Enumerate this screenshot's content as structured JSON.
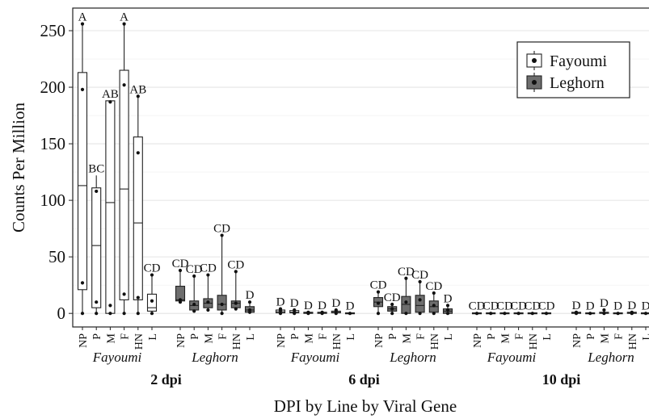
{
  "chart_data": {
    "type": "boxplot",
    "ylabel": "Counts Per Million",
    "xlabel": "DPI by Line by Viral Gene",
    "ylim": [
      -12,
      270
    ],
    "yticks": [
      0,
      50,
      100,
      150,
      200,
      250
    ],
    "grid": true,
    "legend": {
      "position": "top-right",
      "entries": [
        {
          "name": "Fayoumi",
          "color": "#ffffff"
        },
        {
          "name": "Leghorn",
          "color": "#6e6e6e"
        }
      ]
    },
    "genes": [
      "NP",
      "P",
      "M",
      "F",
      "HN",
      "L"
    ],
    "panels": [
      {
        "dpi": "2 dpi",
        "groups": [
          {
            "line": "Fayoumi",
            "boxes": [
              {
                "gene": "NP",
                "min": 0,
                "q1": 21,
                "median": 113,
                "q3": 213,
                "max": 256,
                "points": [
                  0,
                  27,
                  198,
                  256
                ],
                "letter": "A"
              },
              {
                "gene": "P",
                "min": 0,
                "q1": 5,
                "median": 60,
                "q3": 111,
                "max": 122,
                "points": [
                  0,
                  10,
                  108
                ],
                "letter": "BC"
              },
              {
                "gene": "M",
                "min": 0,
                "q1": 0,
                "median": 98,
                "q3": 188,
                "max": 188,
                "points": [
                  0,
                  7,
                  187
                ],
                "letter": "AB"
              },
              {
                "gene": "F",
                "min": 0,
                "q1": 12,
                "median": 110,
                "q3": 215,
                "max": 256,
                "points": [
                  0,
                  17,
                  202,
                  256
                ],
                "letter": "A"
              },
              {
                "gene": "HN",
                "min": 0,
                "q1": 12,
                "median": 80,
                "q3": 156,
                "max": 192,
                "points": [
                  0,
                  14,
                  142,
                  192
                ],
                "letter": "AB"
              },
              {
                "gene": "L",
                "min": 0,
                "q1": 2,
                "median": 5,
                "q3": 17,
                "max": 34,
                "points": [
                  0,
                  11,
                  34
                ],
                "letter": "CD"
              }
            ]
          },
          {
            "line": "Leghorn",
            "boxes": [
              {
                "gene": "NP",
                "min": 10,
                "q1": 11,
                "median": 12,
                "q3": 24,
                "max": 38,
                "points": [
                  10,
                  12,
                  38
                ],
                "letter": "CD"
              },
              {
                "gene": "P",
                "min": 2,
                "q1": 3,
                "median": 7,
                "q3": 11,
                "max": 33,
                "points": [
                  2,
                  8,
                  33
                ],
                "letter": "CD"
              },
              {
                "gene": "M",
                "min": 3,
                "q1": 5,
                "median": 9,
                "q3": 13,
                "max": 34,
                "points": [
                  3,
                  10,
                  34
                ],
                "letter": "CD"
              },
              {
                "gene": "F",
                "min": 0,
                "q1": 3,
                "median": 8,
                "q3": 16,
                "max": 69,
                "points": [
                  0,
                  8,
                  69
                ],
                "letter": "CD"
              },
              {
                "gene": "HN",
                "min": 4,
                "q1": 5,
                "median": 9,
                "q3": 11,
                "max": 37,
                "points": [
                  4,
                  9,
                  37
                ],
                "letter": "CD"
              },
              {
                "gene": "L",
                "min": 1,
                "q1": 1,
                "median": 3,
                "q3": 6,
                "max": 10,
                "points": [
                  1,
                  3,
                  10
                ],
                "letter": "D"
              }
            ]
          }
        ]
      },
      {
        "dpi": "6 dpi",
        "groups": [
          {
            "line": "Fayoumi",
            "boxes": [
              {
                "gene": "NP",
                "min": 0,
                "q1": 0.5,
                "median": 1.5,
                "q3": 3,
                "max": 4,
                "points": [
                  0,
                  2,
                  4
                ],
                "letter": "D"
              },
              {
                "gene": "P",
                "min": 0,
                "q1": 0.5,
                "median": 1,
                "q3": 2.5,
                "max": 3,
                "points": [
                  0,
                  1,
                  3
                ],
                "letter": "D"
              },
              {
                "gene": "M",
                "min": 0,
                "q1": 0,
                "median": 0.5,
                "q3": 1,
                "max": 1,
                "points": [
                  0,
                  1
                ],
                "letter": "D"
              },
              {
                "gene": "F",
                "min": 0,
                "q1": 0,
                "median": 0.5,
                "q3": 1,
                "max": 1,
                "points": [
                  0,
                  1
                ],
                "letter": "D"
              },
              {
                "gene": "HN",
                "min": 0,
                "q1": 0.5,
                "median": 1,
                "q3": 2,
                "max": 3,
                "points": [
                  0,
                  2,
                  3
                ],
                "letter": "D"
              },
              {
                "gene": "L",
                "min": 0,
                "q1": 0,
                "median": 0,
                "q3": 0.5,
                "max": 0.5,
                "points": [
                  0
                ],
                "letter": "D"
              }
            ]
          },
          {
            "line": "Leghorn",
            "boxes": [
              {
                "gene": "NP",
                "min": 0,
                "q1": 6,
                "median": 10,
                "q3": 14,
                "max": 19,
                "points": [
                  0,
                  9,
                  19
                ],
                "letter": "CD"
              },
              {
                "gene": "P",
                "min": 0,
                "q1": 2,
                "median": 4,
                "q3": 6,
                "max": 8,
                "points": [
                  0,
                  4,
                  8
                ],
                "letter": "CD"
              },
              {
                "gene": "M",
                "min": 0,
                "q1": 0,
                "median": 8,
                "q3": 15,
                "max": 31,
                "points": [
                  0,
                  10,
                  31
                ],
                "letter": "CD"
              },
              {
                "gene": "F",
                "min": 0,
                "q1": 1,
                "median": 7,
                "q3": 16,
                "max": 28,
                "points": [
                  0,
                  12,
                  28
                ],
                "letter": "CD"
              },
              {
                "gene": "HN",
                "min": 0,
                "q1": 1,
                "median": 6,
                "q3": 11,
                "max": 18,
                "points": [
                  0,
                  7,
                  18
                ],
                "letter": "CD"
              },
              {
                "gene": "L",
                "min": 0,
                "q1": 0,
                "median": 2,
                "q3": 4,
                "max": 7,
                "points": [
                  0,
                  3,
                  7
                ],
                "letter": "D"
              }
            ]
          }
        ]
      },
      {
        "dpi": "10 dpi",
        "groups": [
          {
            "line": "Fayoumi",
            "boxes": [
              {
                "gene": "NP",
                "min": 0,
                "q1": 0,
                "median": 0,
                "q3": 0.5,
                "max": 0.5,
                "points": [
                  0
                ],
                "letter": "CD"
              },
              {
                "gene": "P",
                "min": 0,
                "q1": 0,
                "median": 0,
                "q3": 0.5,
                "max": 0.5,
                "points": [
                  0
                ],
                "letter": "CD"
              },
              {
                "gene": "M",
                "min": 0,
                "q1": 0,
                "median": 0,
                "q3": 0.5,
                "max": 0.5,
                "points": [
                  0
                ],
                "letter": "CD"
              },
              {
                "gene": "F",
                "min": 0,
                "q1": 0,
                "median": 0,
                "q3": 0.5,
                "max": 0.5,
                "points": [
                  0
                ],
                "letter": "CD"
              },
              {
                "gene": "HN",
                "min": 0,
                "q1": 0,
                "median": 0,
                "q3": 0.5,
                "max": 0.5,
                "points": [
                  0
                ],
                "letter": "CD"
              },
              {
                "gene": "L",
                "min": 0,
                "q1": 0,
                "median": 0,
                "q3": 0.5,
                "max": 0.5,
                "points": [
                  0
                ],
                "letter": "CD"
              }
            ]
          },
          {
            "line": "Leghorn",
            "boxes": [
              {
                "gene": "NP",
                "min": 0,
                "q1": 0,
                "median": 0.5,
                "q3": 1,
                "max": 1,
                "points": [
                  0,
                  1
                ],
                "letter": "D"
              },
              {
                "gene": "P",
                "min": 0,
                "q1": 0,
                "median": 0,
                "q3": 0.5,
                "max": 0.5,
                "points": [
                  0
                ],
                "letter": "D"
              },
              {
                "gene": "M",
                "min": 0,
                "q1": 0,
                "median": 0.5,
                "q3": 1,
                "max": 3,
                "points": [
                  0,
                  3
                ],
                "letter": "D"
              },
              {
                "gene": "F",
                "min": 0,
                "q1": 0,
                "median": 0,
                "q3": 0.5,
                "max": 0.5,
                "points": [
                  0
                ],
                "letter": "D"
              },
              {
                "gene": "HN",
                "min": 0,
                "q1": 0,
                "median": 0.5,
                "q3": 1,
                "max": 1,
                "points": [
                  0,
                  1
                ],
                "letter": "D"
              },
              {
                "gene": "L",
                "min": 0,
                "q1": 0,
                "median": 0,
                "q3": 0.5,
                "max": 0.5,
                "points": [
                  0
                ],
                "letter": "D"
              }
            ]
          }
        ]
      }
    ]
  }
}
